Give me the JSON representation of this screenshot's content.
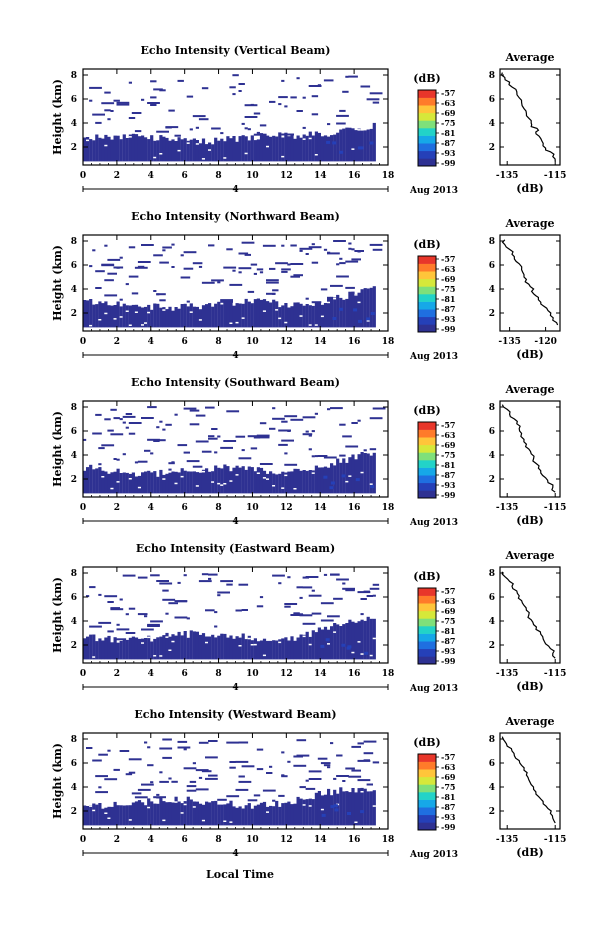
{
  "figure": {
    "xlabel": "Local Time"
  },
  "colorbar": {
    "unit": "(dB)",
    "ticks": [
      "-57",
      "-63",
      "-69",
      "-75",
      "-81",
      "-87",
      "-93",
      "-99"
    ],
    "colors": [
      "#2e3192",
      "#2540b8",
      "#1f6fe0",
      "#16a8e8",
      "#22d3c8",
      "#7fe07a",
      "#d6e83a",
      "#ffc53a",
      "#ff7b2a",
      "#e8362a"
    ]
  },
  "chart_data": [
    {
      "type": "heatmap",
      "title": "Echo Intensity (Vertical Beam)",
      "ylabel": "Height (km)",
      "x_ticks": [
        "0",
        "2",
        "4",
        "6",
        "8",
        "10",
        "12",
        "14",
        "16",
        "18"
      ],
      "y_ticks": [
        "8",
        "6",
        "4",
        "2"
      ],
      "date_label": "Aug 2013",
      "day_marker": "4",
      "xlim": [
        0,
        18
      ],
      "ylim": [
        0.5,
        8.5
      ],
      "fill_color": "#2e3192",
      "profile": {
        "title": "Average",
        "xlabel": "(dB)",
        "x_ticks": [
          "-135",
          "-115"
        ],
        "y_ticks": [
          "8",
          "6",
          "4",
          "2"
        ],
        "xlim": [
          -138,
          -113
        ],
        "points": [
          [
            -137,
            8.2
          ],
          [
            -136,
            7.8
          ],
          [
            -134,
            7.4
          ],
          [
            -133,
            7.0
          ],
          [
            -131,
            6.6
          ],
          [
            -130,
            6.1
          ],
          [
            -129,
            5.7
          ],
          [
            -128,
            5.2
          ],
          [
            -127,
            4.8
          ],
          [
            -126,
            4.4
          ],
          [
            -125,
            4.0
          ],
          [
            -125,
            3.7
          ],
          [
            -122,
            3.4
          ],
          [
            -123,
            3.1
          ],
          [
            -121,
            2.7
          ],
          [
            -120,
            2.3
          ],
          [
            -119,
            1.9
          ],
          [
            -117,
            1.6
          ],
          [
            -116,
            1.2
          ],
          [
            -115,
            0.8
          ]
        ]
      }
    },
    {
      "type": "heatmap",
      "title": "Echo Intensity (Northward Beam)",
      "ylabel": "Height (km)",
      "x_ticks": [
        "0",
        "2",
        "4",
        "6",
        "8",
        "10",
        "12",
        "14",
        "16",
        "18"
      ],
      "y_ticks": [
        "8",
        "6",
        "4",
        "2"
      ],
      "date_label": "Aug 2013",
      "day_marker": "4",
      "xlim": [
        0,
        18
      ],
      "ylim": [
        0.5,
        8.5
      ],
      "fill_color": "#2e3192",
      "profile": {
        "title": "Average",
        "xlabel": "(dB)",
        "x_ticks": [
          "-135",
          "-120"
        ],
        "y_ticks": [
          "8",
          "6",
          "4",
          "2"
        ],
        "xlim": [
          -139,
          -114
        ],
        "points": [
          [
            -137,
            8.1
          ],
          [
            -137,
            7.7
          ],
          [
            -135,
            7.3
          ],
          [
            -134,
            6.9
          ],
          [
            -133,
            6.5
          ],
          [
            -131,
            6.1
          ],
          [
            -130,
            5.6
          ],
          [
            -129,
            5.2
          ],
          [
            -128,
            4.8
          ],
          [
            -127,
            4.4
          ],
          [
            -125,
            4.0
          ],
          [
            -125,
            3.6
          ],
          [
            -123,
            3.3
          ],
          [
            -122,
            2.9
          ],
          [
            -121,
            2.6
          ],
          [
            -119,
            2.2
          ],
          [
            -118,
            1.8
          ],
          [
            -117,
            1.4
          ],
          [
            -115,
            1.0
          ]
        ]
      }
    },
    {
      "type": "heatmap",
      "title": "Echo Intensity (Southward Beam)",
      "ylabel": "Height (km)",
      "x_ticks": [
        "0",
        "2",
        "4",
        "6",
        "8",
        "10",
        "12",
        "14",
        "16",
        "18"
      ],
      "y_ticks": [
        "8",
        "6",
        "4",
        "2"
      ],
      "date_label": "Aug 2013",
      "day_marker": "4",
      "xlim": [
        0,
        18
      ],
      "ylim": [
        0.5,
        8.5
      ],
      "fill_color": "#2e3192",
      "profile": {
        "title": "Average",
        "xlabel": "(dB)",
        "x_ticks": [
          "-135",
          "-115"
        ],
        "y_ticks": [
          "8",
          "6",
          "4",
          "2"
        ],
        "xlim": [
          -138,
          -113
        ],
        "points": [
          [
            -137,
            8.2
          ],
          [
            -135,
            7.8
          ],
          [
            -134,
            7.4
          ],
          [
            -132,
            7.0
          ],
          [
            -131,
            6.6
          ],
          [
            -130,
            6.2
          ],
          [
            -129,
            5.8
          ],
          [
            -128,
            5.3
          ],
          [
            -127,
            4.9
          ],
          [
            -126,
            4.5
          ],
          [
            -125,
            4.1
          ],
          [
            -124,
            3.7
          ],
          [
            -123,
            3.3
          ],
          [
            -122,
            2.9
          ],
          [
            -121,
            2.5
          ],
          [
            -119,
            2.1
          ],
          [
            -118,
            1.7
          ],
          [
            -116,
            1.3
          ],
          [
            -115,
            0.9
          ]
        ]
      }
    },
    {
      "type": "heatmap",
      "title": "Echo Intensity (Eastward Beam)",
      "ylabel": "Height (km)",
      "x_ticks": [
        "0",
        "2",
        "4",
        "6",
        "8",
        "10",
        "12",
        "14",
        "16",
        "18"
      ],
      "y_ticks": [
        "8",
        "6",
        "4",
        "2"
      ],
      "date_label": "Aug 2013",
      "day_marker": "4",
      "xlim": [
        0,
        18
      ],
      "ylim": [
        0.5,
        8.5
      ],
      "fill_color": "#2e3192",
      "profile": {
        "title": "Average",
        "xlabel": "(dB)",
        "x_ticks": [
          "-135",
          "-115"
        ],
        "y_ticks": [
          "8",
          "6",
          "4",
          "2"
        ],
        "xlim": [
          -138,
          -113
        ],
        "points": [
          [
            -137,
            8.1
          ],
          [
            -136,
            7.7
          ],
          [
            -134,
            7.3
          ],
          [
            -133,
            6.9
          ],
          [
            -131,
            6.5
          ],
          [
            -130,
            6.1
          ],
          [
            -129,
            5.7
          ],
          [
            -128,
            5.3
          ],
          [
            -127,
            4.9
          ],
          [
            -126,
            4.5
          ],
          [
            -125,
            4.1
          ],
          [
            -124,
            3.7
          ],
          [
            -123,
            3.3
          ],
          [
            -121,
            2.9
          ],
          [
            -120,
            2.5
          ],
          [
            -119,
            2.1
          ],
          [
            -117,
            1.7
          ],
          [
            -116,
            1.3
          ],
          [
            -115,
            0.9
          ]
        ]
      }
    },
    {
      "type": "heatmap",
      "title": "Echo Intensity (Westward Beam)",
      "ylabel": "Height (km)",
      "x_ticks": [
        "0",
        "2",
        "4",
        "6",
        "8",
        "10",
        "12",
        "14",
        "16",
        "18"
      ],
      "y_ticks": [
        "8",
        "6",
        "4",
        "2"
      ],
      "date_label": "Aug 2013",
      "day_marker": "4",
      "xlim": [
        0,
        18
      ],
      "ylim": [
        0.5,
        8.5
      ],
      "fill_color": "#2e3192",
      "profile": {
        "title": "Average",
        "xlabel": "(dB)",
        "x_ticks": [
          "-135",
          "-115"
        ],
        "y_ticks": [
          "8",
          "6",
          "4",
          "2"
        ],
        "xlim": [
          -138,
          -113
        ],
        "points": [
          [
            -137,
            8.2
          ],
          [
            -136,
            7.8
          ],
          [
            -135,
            7.4
          ],
          [
            -133,
            7.0
          ],
          [
            -132,
            6.6
          ],
          [
            -130,
            6.2
          ],
          [
            -129,
            5.8
          ],
          [
            -128,
            5.4
          ],
          [
            -127,
            5.0
          ],
          [
            -126,
            4.6
          ],
          [
            -125,
            4.2
          ],
          [
            -124,
            3.8
          ],
          [
            -123,
            3.4
          ],
          [
            -121,
            3.0
          ],
          [
            -120,
            2.6
          ],
          [
            -118,
            2.2
          ],
          [
            -117,
            1.8
          ],
          [
            -116,
            1.4
          ],
          [
            -115,
            1.0
          ]
        ]
      }
    }
  ]
}
